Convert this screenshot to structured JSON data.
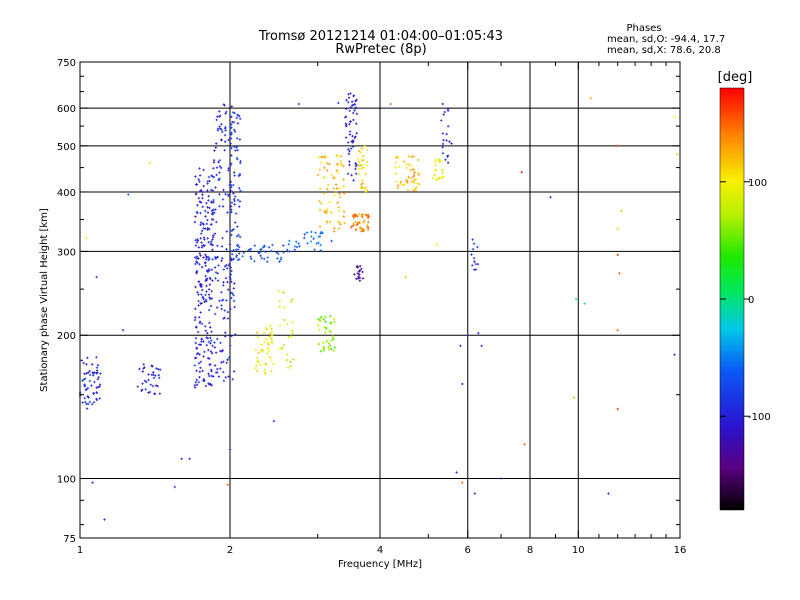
{
  "chart_data": {
    "type": "scatter",
    "title": "Tromsø 20121214 01:04:00–01:05:43",
    "subtitle": "RwPretec (8p)",
    "xlabel": "Frequency [MHz]",
    "ylabel": "Stationary phase Virtual Height [km]",
    "xscale": "log",
    "yscale": "log",
    "xlim": [
      1,
      16
    ],
    "ylim": [
      75,
      750
    ],
    "x_ticks": [
      1,
      2,
      4,
      6,
      8,
      10,
      16
    ],
    "x_tick_labels": [
      "1",
      "2",
      "4",
      "6",
      "8",
      "10",
      "16"
    ],
    "x_grid": [
      2,
      4,
      6,
      8,
      10
    ],
    "y_ticks": [
      75,
      100,
      200,
      300,
      400,
      500,
      600,
      750
    ],
    "y_tick_labels": [
      "75",
      "100",
      "200",
      "300",
      "400",
      "500",
      "600",
      "750"
    ],
    "y_grid": [
      100,
      200,
      300,
      400,
      500,
      600
    ],
    "stats": {
      "heading": "Phases",
      "line1": "mean, sd,O: -94.4, 17.7",
      "line2": "mean, sd,X: 78.6, 20.8"
    },
    "colorbar": {
      "label": "[deg]",
      "range": [
        -180,
        180
      ],
      "ticks": [
        100,
        0,
        -100
      ],
      "tick_labels": [
        "100",
        "0",
        "-100"
      ]
    },
    "clusters": [
      {
        "f": [
          1.0,
          1.1
        ],
        "h": [
          140,
          180
        ],
        "phase": -95,
        "n": 60
      },
      {
        "f": [
          1.3,
          1.45
        ],
        "h": [
          150,
          175
        ],
        "phase": -100,
        "n": 35
      },
      {
        "f": [
          1.7,
          1.85
        ],
        "h": [
          155,
          450
        ],
        "phase": -100,
        "n": 240
      },
      {
        "f": [
          1.85,
          2.05
        ],
        "h": [
          160,
          620
        ],
        "phase": -95,
        "n": 180
      },
      {
        "f": [
          2.0,
          2.1
        ],
        "h": [
          300,
          600
        ],
        "phase": -80,
        "n": 60
      },
      {
        "f": [
          2.05,
          2.6
        ],
        "h": [
          285,
          310
        ],
        "phase": -70,
        "n": 40
      },
      {
        "f": [
          2.25,
          2.45
        ],
        "h": [
          165,
          210
        ],
        "phase": 100,
        "n": 45
      },
      {
        "f": [
          2.5,
          2.7
        ],
        "h": [
          170,
          250
        ],
        "phase": 80,
        "n": 25
      },
      {
        "f": [
          2.6,
          3.2
        ],
        "h": [
          300,
          330
        ],
        "phase": -60,
        "n": 30
      },
      {
        "f": [
          3.0,
          3.25
        ],
        "h": [
          185,
          220
        ],
        "phase": 60,
        "n": 40
      },
      {
        "f": [
          3.0,
          3.4
        ],
        "h": [
          330,
          480
        ],
        "phase": 120,
        "n": 70
      },
      {
        "f": [
          3.4,
          3.6
        ],
        "h": [
          420,
          650
        ],
        "phase": -100,
        "n": 60
      },
      {
        "f": [
          3.5,
          3.8
        ],
        "h": [
          330,
          360
        ],
        "phase": 140,
        "n": 45
      },
      {
        "f": [
          3.55,
          3.7
        ],
        "h": [
          260,
          280
        ],
        "phase": -130,
        "n": 18
      },
      {
        "f": [
          3.6,
          3.8
        ],
        "h": [
          400,
          500
        ],
        "phase": 110,
        "n": 30
      },
      {
        "f": [
          4.3,
          4.8
        ],
        "h": [
          400,
          480
        ],
        "phase": 120,
        "n": 50
      },
      {
        "f": [
          5.1,
          5.4
        ],
        "h": [
          420,
          470
        ],
        "phase": 90,
        "n": 20
      },
      {
        "f": [
          5.3,
          5.6
        ],
        "h": [
          460,
          620
        ],
        "phase": -100,
        "n": 20
      },
      {
        "f": [
          6.1,
          6.3
        ],
        "h": [
          260,
          320
        ],
        "phase": -90,
        "n": 12
      }
    ],
    "scatter_points": [
      {
        "f": 1.03,
        "h": 320,
        "phase": 100
      },
      {
        "f": 1.08,
        "h": 265,
        "phase": -90
      },
      {
        "f": 1.22,
        "h": 205,
        "phase": -100
      },
      {
        "f": 1.25,
        "h": 395,
        "phase": -60
      },
      {
        "f": 1.38,
        "h": 460,
        "phase": 110
      },
      {
        "f": 1.6,
        "h": 110,
        "phase": -90
      },
      {
        "f": 1.66,
        "h": 110,
        "phase": -90
      },
      {
        "f": 1.55,
        "h": 96,
        "phase": -90
      },
      {
        "f": 1.12,
        "h": 82,
        "phase": -90
      },
      {
        "f": 1.06,
        "h": 98,
        "phase": -90
      },
      {
        "f": 1.98,
        "h": 97,
        "phase": 150
      },
      {
        "f": 2.0,
        "h": 115,
        "phase": -120
      },
      {
        "f": 2.45,
        "h": 132,
        "phase": -100
      },
      {
        "f": 2.75,
        "h": 612,
        "phase": -90
      },
      {
        "f": 3.3,
        "h": 615,
        "phase": -90
      },
      {
        "f": 4.2,
        "h": 612,
        "phase": 150
      },
      {
        "f": 4.5,
        "h": 265,
        "phase": 120
      },
      {
        "f": 5.2,
        "h": 310,
        "phase": 100
      },
      {
        "f": 5.7,
        "h": 103,
        "phase": -90
      },
      {
        "f": 5.85,
        "h": 98,
        "phase": 150
      },
      {
        "f": 5.8,
        "h": 190,
        "phase": -110
      },
      {
        "f": 5.85,
        "h": 158,
        "phase": -110
      },
      {
        "f": 6.0,
        "h": 200,
        "phase": -100
      },
      {
        "f": 6.2,
        "h": 93,
        "phase": -100
      },
      {
        "f": 6.3,
        "h": 202,
        "phase": -100
      },
      {
        "f": 6.4,
        "h": 190,
        "phase": -110
      },
      {
        "f": 7.0,
        "h": 100,
        "phase": -90
      },
      {
        "f": 7.8,
        "h": 118,
        "phase": 150
      },
      {
        "f": 7.7,
        "h": 440,
        "phase": 170
      },
      {
        "f": 8.8,
        "h": 390,
        "phase": -90
      },
      {
        "f": 9.8,
        "h": 148,
        "phase": 60
      },
      {
        "f": 9.9,
        "h": 238,
        "phase": 20
      },
      {
        "f": 10.3,
        "h": 233,
        "phase": -20
      },
      {
        "f": 10.6,
        "h": 630,
        "phase": 130
      },
      {
        "f": 11.5,
        "h": 93,
        "phase": -100
      },
      {
        "f": 12.0,
        "h": 500,
        "phase": 170
      },
      {
        "f": 12.0,
        "h": 205,
        "phase": 150
      },
      {
        "f": 12.0,
        "h": 140,
        "phase": 170
      },
      {
        "f": 12.2,
        "h": 365,
        "phase": 120
      },
      {
        "f": 12.0,
        "h": 335,
        "phase": 110
      },
      {
        "f": 12.0,
        "h": 295,
        "phase": 170
      },
      {
        "f": 12.1,
        "h": 270,
        "phase": 150
      },
      {
        "f": 15.6,
        "h": 575,
        "phase": 100
      },
      {
        "f": 15.6,
        "h": 182,
        "phase": -100
      },
      {
        "f": 15.8,
        "h": 480,
        "phase": 120
      }
    ]
  }
}
